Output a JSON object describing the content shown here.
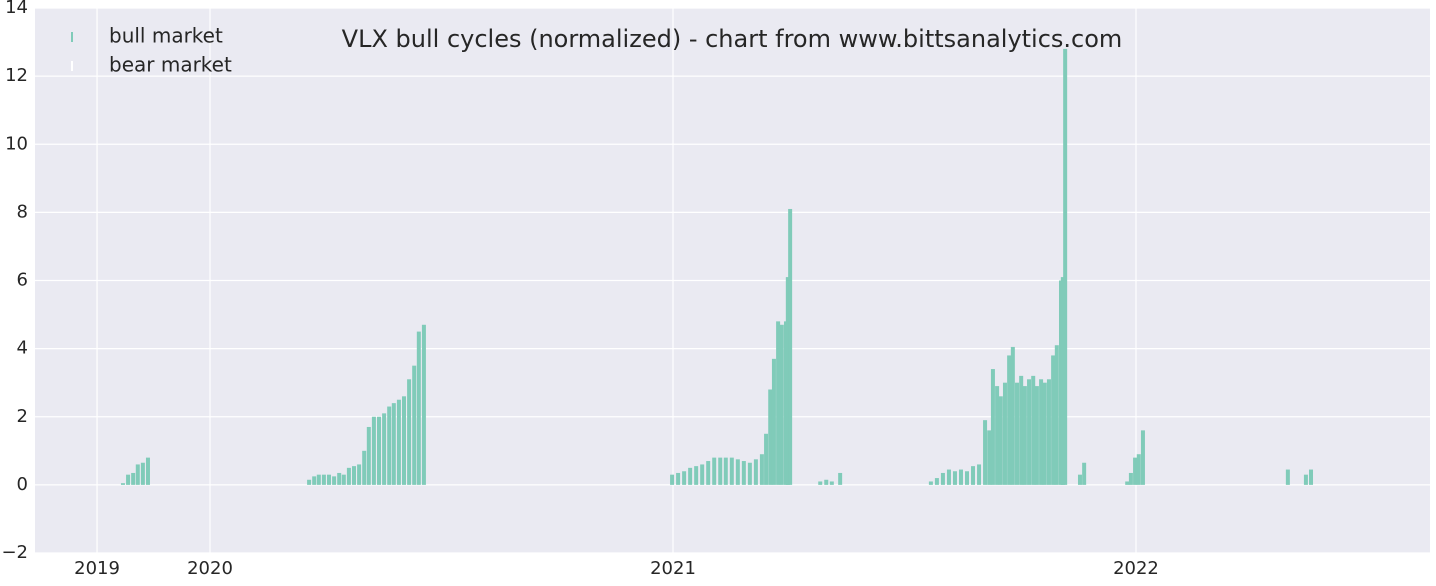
{
  "chart_data": {
    "type": "bar",
    "title": "VLX bull cycles (normalized)  - chart from www.bittsanalytics.com",
    "series": [
      {
        "name": "bull market",
        "color": "#80cbb9",
        "x": [
          2019.812,
          2019.823,
          2019.834,
          2019.844,
          2019.855,
          2019.866,
          2020.214,
          2020.225,
          2020.235,
          2020.246,
          2020.257,
          2020.268,
          2020.279,
          2020.289,
          2020.3,
          2020.311,
          2020.322,
          2020.333,
          2020.343,
          2020.354,
          2020.365,
          2020.376,
          2020.387,
          2020.397,
          2020.408,
          2020.419,
          2020.43,
          2020.441,
          2020.451,
          2020.462,
          2020.998,
          2021.011,
          2021.024,
          2021.037,
          2021.05,
          2021.063,
          2021.076,
          2021.089,
          2021.102,
          2021.114,
          2021.127,
          2021.14,
          2021.153,
          2021.166,
          2021.179,
          2021.192,
          2021.201,
          2021.21,
          2021.218,
          2021.227,
          2021.235,
          2021.244,
          2021.248,
          2021.253,
          2021.318,
          2021.331,
          2021.343,
          2021.361,
          2021.557,
          2021.57,
          2021.583,
          2021.596,
          2021.609,
          2021.622,
          2021.635,
          2021.648,
          2021.661,
          2021.674,
          2021.683,
          2021.691,
          2021.7,
          2021.708,
          2021.717,
          2021.726,
          2021.734,
          2021.743,
          2021.752,
          2021.76,
          2021.769,
          2021.778,
          2021.786,
          2021.795,
          2021.803,
          2021.812,
          2021.821,
          2021.829,
          2021.838,
          2021.842,
          2021.847,
          2021.879,
          2021.888,
          2021.981,
          2021.989,
          2021.998,
          2022.006,
          2022.015,
          2022.328,
          2022.367,
          2022.378
        ],
        "values": [
          0.05,
          0.3,
          0.35,
          0.6,
          0.65,
          0.8,
          0.15,
          0.25,
          0.3,
          0.3,
          0.3,
          0.25,
          0.35,
          0.3,
          0.5,
          0.55,
          0.6,
          1.0,
          1.7,
          2.0,
          2.0,
          2.1,
          2.3,
          2.4,
          2.5,
          2.6,
          3.1,
          3.5,
          4.5,
          4.7,
          0.3,
          0.35,
          0.4,
          0.5,
          0.55,
          0.6,
          0.7,
          0.8,
          0.8,
          0.8,
          0.8,
          0.75,
          0.7,
          0.65,
          0.75,
          0.9,
          1.5,
          2.8,
          3.7,
          4.8,
          4.7,
          4.8,
          6.1,
          8.1,
          0.1,
          0.15,
          0.1,
          0.35,
          0.1,
          0.2,
          0.35,
          0.45,
          0.4,
          0.45,
          0.4,
          0.55,
          0.6,
          1.9,
          1.6,
          3.4,
          2.9,
          2.6,
          3.0,
          3.8,
          4.05,
          3.0,
          3.2,
          2.9,
          3.1,
          3.2,
          2.9,
          3.1,
          3.0,
          3.1,
          3.8,
          4.1,
          6.0,
          6.1,
          12.8,
          0.3,
          0.65,
          0.1,
          0.35,
          0.8,
          0.9,
          1.6,
          0.45,
          0.3,
          0.45
        ]
      },
      {
        "name": "bear market",
        "color": "#ffffff",
        "x": [],
        "values": []
      }
    ],
    "xlim": [
      2019.622,
      2022.635
    ],
    "xticks": [
      {
        "value": 2019.756,
        "label": "2019"
      },
      2020,
      2021,
      2022
    ],
    "ylim": [
      -2,
      14
    ],
    "yticks": [
      {
        "value": -2,
        "label": "−2"
      },
      0,
      2,
      4,
      6,
      8,
      10,
      12,
      14
    ],
    "grid": true,
    "legend": "upper left"
  }
}
